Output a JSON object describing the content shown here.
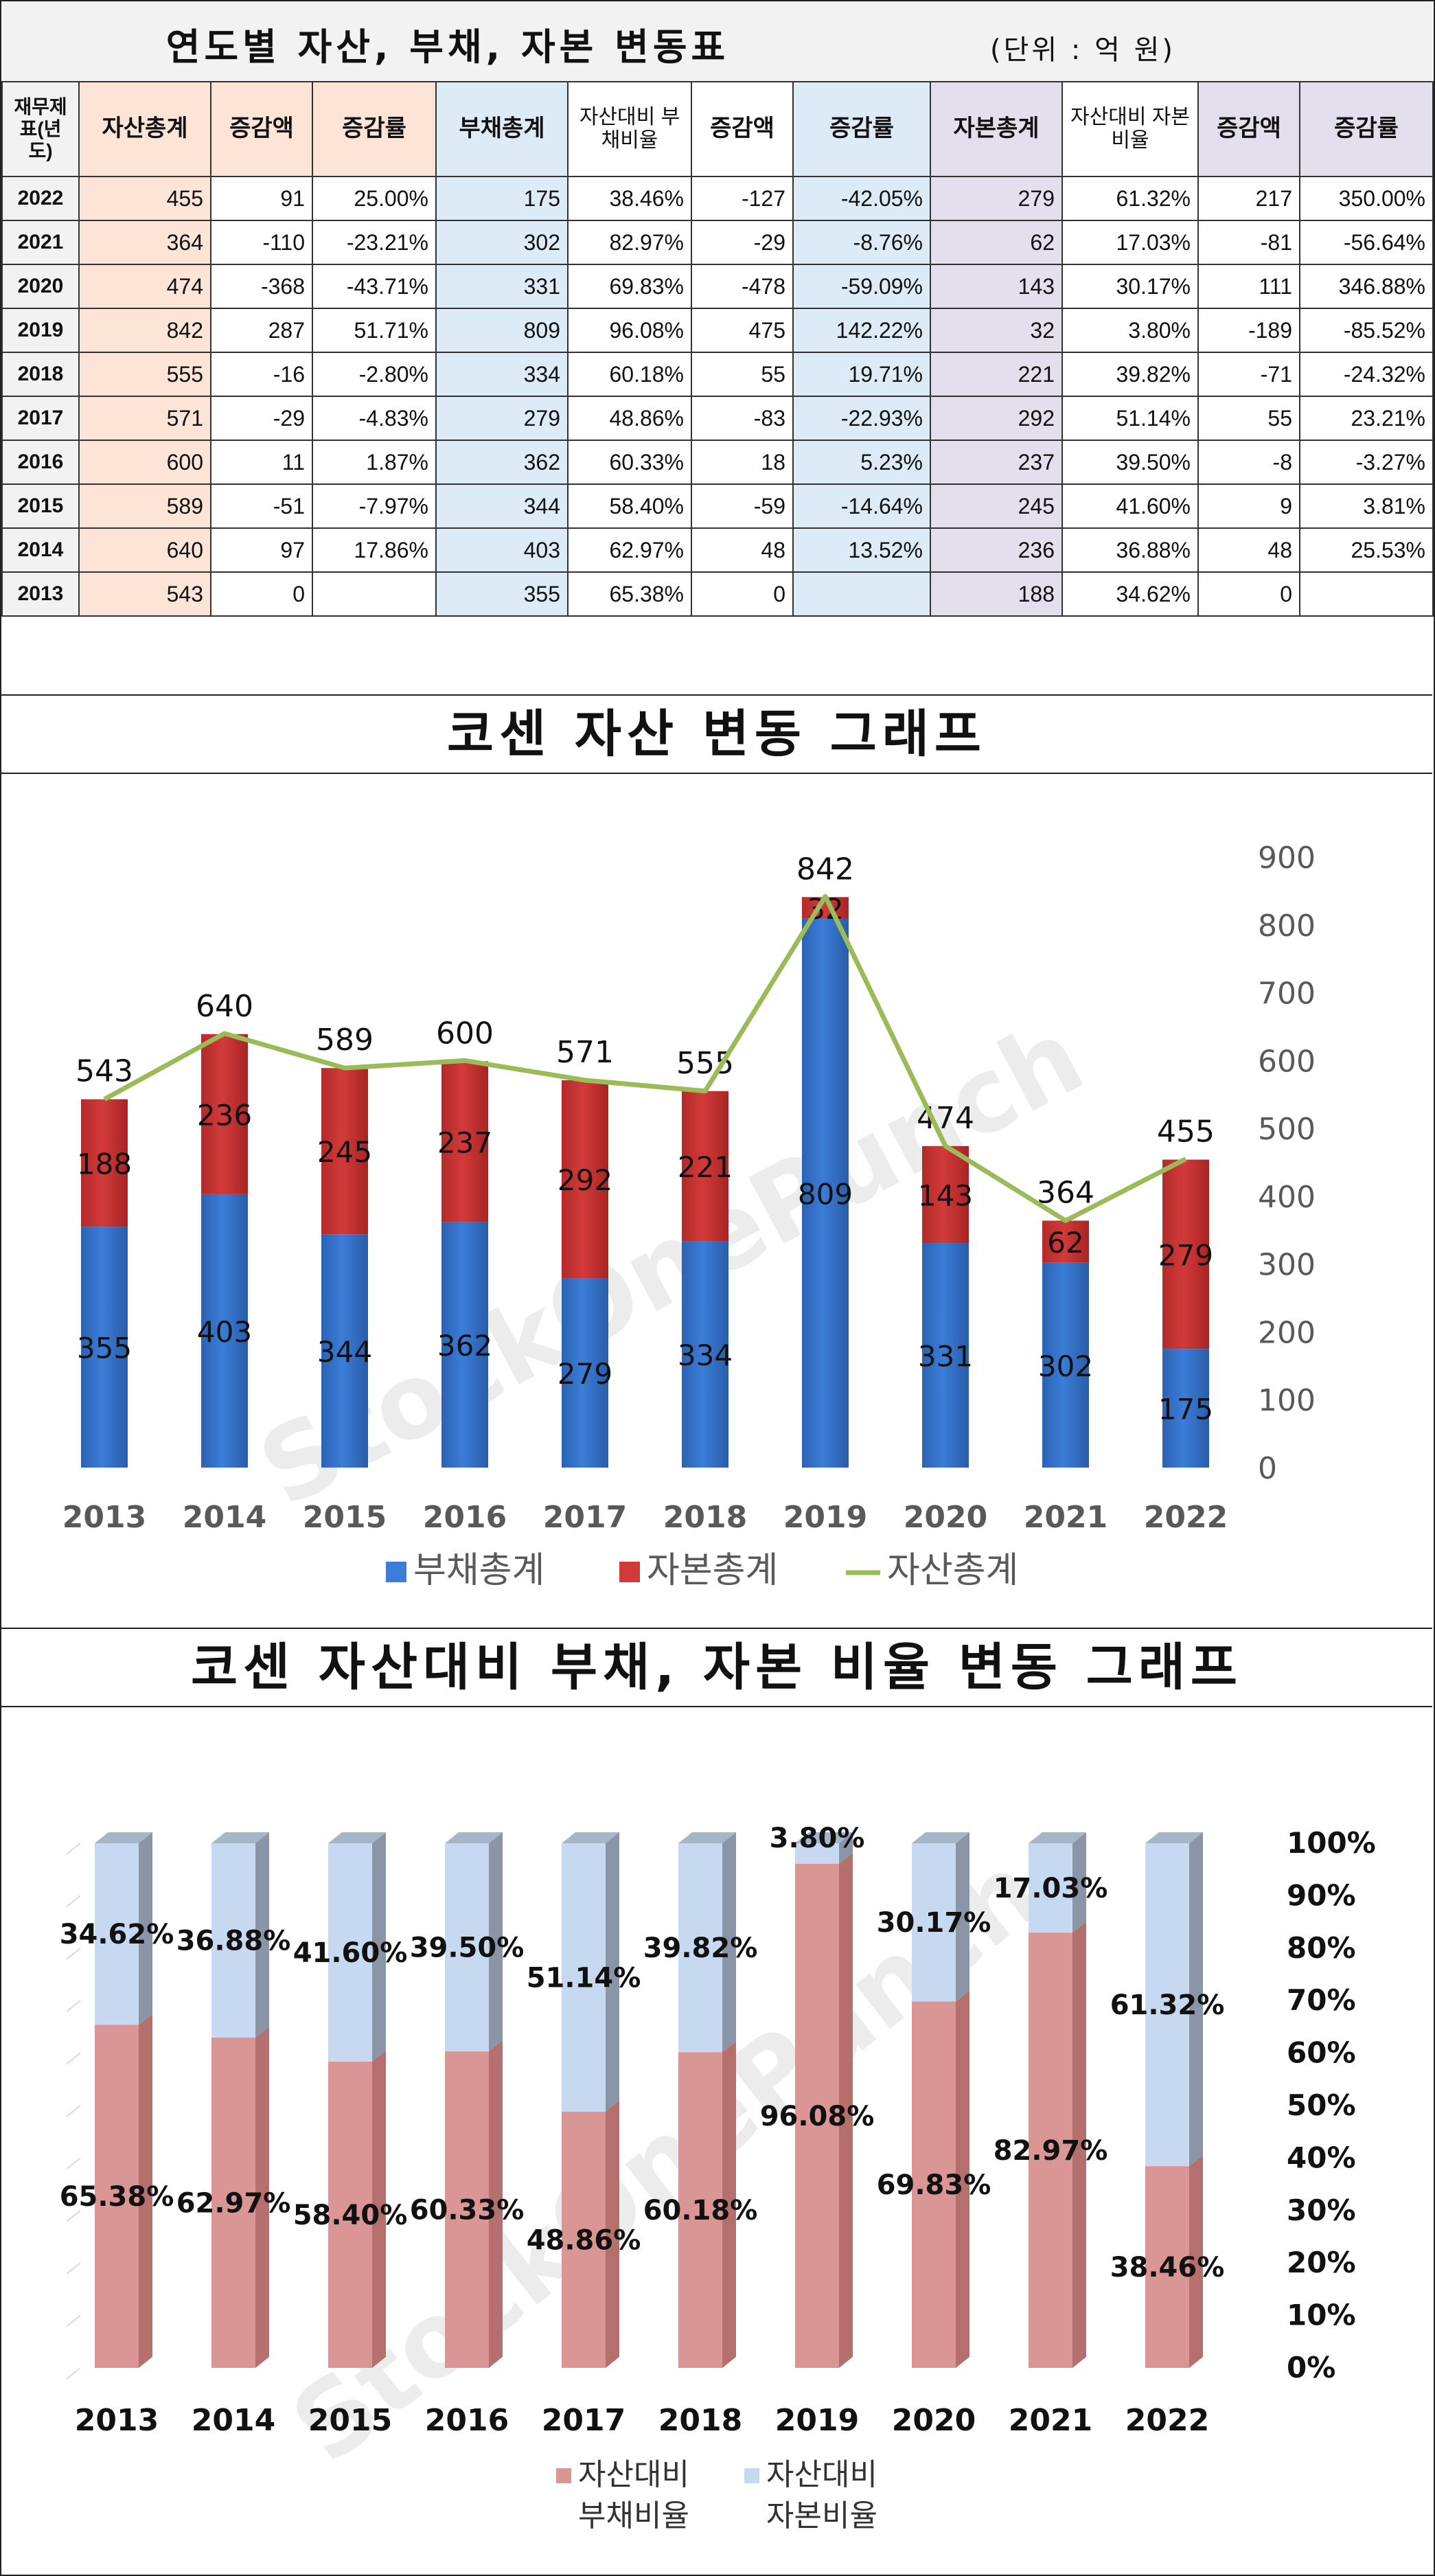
{
  "table": {
    "title": "연도별 자산, 부채, 자본 변동표",
    "unit": "(단위 : 억 원)",
    "headers": {
      "year": "재무제표(년도)",
      "assets_total": "자산총계",
      "assets_change": "증감액",
      "assets_rate": "증감률",
      "debt_total": "부채총계",
      "debt_ratio": "자산대비 부채비율",
      "debt_change": "증감액",
      "debt_rate": "증감률",
      "equity_total": "자본총계",
      "equity_ratio": "자산대비 자본비율",
      "equity_change": "증감액",
      "equity_rate": "증감률"
    },
    "rows": [
      {
        "year": "2022",
        "assets": "455",
        "a_chg": "91",
        "a_rate": "25.00%",
        "debt": "175",
        "d_ratio": "38.46%",
        "d_chg": "-127",
        "d_rate": "-42.05%",
        "equity": "279",
        "e_ratio": "61.32%",
        "e_chg": "217",
        "e_rate": "350.00%"
      },
      {
        "year": "2021",
        "assets": "364",
        "a_chg": "-110",
        "a_rate": "-23.21%",
        "debt": "302",
        "d_ratio": "82.97%",
        "d_chg": "-29",
        "d_rate": "-8.76%",
        "equity": "62",
        "e_ratio": "17.03%",
        "e_chg": "-81",
        "e_rate": "-56.64%"
      },
      {
        "year": "2020",
        "assets": "474",
        "a_chg": "-368",
        "a_rate": "-43.71%",
        "debt": "331",
        "d_ratio": "69.83%",
        "d_chg": "-478",
        "d_rate": "-59.09%",
        "equity": "143",
        "e_ratio": "30.17%",
        "e_chg": "111",
        "e_rate": "346.88%"
      },
      {
        "year": "2019",
        "assets": "842",
        "a_chg": "287",
        "a_rate": "51.71%",
        "debt": "809",
        "d_ratio": "96.08%",
        "d_chg": "475",
        "d_rate": "142.22%",
        "equity": "32",
        "e_ratio": "3.80%",
        "e_chg": "-189",
        "e_rate": "-85.52%"
      },
      {
        "year": "2018",
        "assets": "555",
        "a_chg": "-16",
        "a_rate": "-2.80%",
        "debt": "334",
        "d_ratio": "60.18%",
        "d_chg": "55",
        "d_rate": "19.71%",
        "equity": "221",
        "e_ratio": "39.82%",
        "e_chg": "-71",
        "e_rate": "-24.32%"
      },
      {
        "year": "2017",
        "assets": "571",
        "a_chg": "-29",
        "a_rate": "-4.83%",
        "debt": "279",
        "d_ratio": "48.86%",
        "d_chg": "-83",
        "d_rate": "-22.93%",
        "equity": "292",
        "e_ratio": "51.14%",
        "e_chg": "55",
        "e_rate": "23.21%"
      },
      {
        "year": "2016",
        "assets": "600",
        "a_chg": "11",
        "a_rate": "1.87%",
        "debt": "362",
        "d_ratio": "60.33%",
        "d_chg": "18",
        "d_rate": "5.23%",
        "equity": "237",
        "e_ratio": "39.50%",
        "e_chg": "-8",
        "e_rate": "-3.27%"
      },
      {
        "year": "2015",
        "assets": "589",
        "a_chg": "-51",
        "a_rate": "-7.97%",
        "debt": "344",
        "d_ratio": "58.40%",
        "d_chg": "-59",
        "d_rate": "-14.64%",
        "equity": "245",
        "e_ratio": "41.60%",
        "e_chg": "9",
        "e_rate": "3.81%"
      },
      {
        "year": "2014",
        "assets": "640",
        "a_chg": "97",
        "a_rate": "17.86%",
        "debt": "403",
        "d_ratio": "62.97%",
        "d_chg": "48",
        "d_rate": "13.52%",
        "equity": "236",
        "e_ratio": "36.88%",
        "e_chg": "48",
        "e_rate": "25.53%"
      },
      {
        "year": "2013",
        "assets": "543",
        "a_chg": "0",
        "a_rate": "",
        "debt": "355",
        "d_ratio": "65.38%",
        "d_chg": "0",
        "d_rate": "",
        "equity": "188",
        "e_ratio": "34.62%",
        "e_chg": "0",
        "e_rate": ""
      }
    ]
  },
  "colors": {
    "debt_bar": "#3b7dd8",
    "equity_bar": "#d23a3a",
    "assets_line": "#9bbb59",
    "ratio_debt": "#d99694",
    "ratio_equity": "#c6d9f1",
    "negative_text": "#c00000"
  },
  "watermark": "StockOnePunch",
  "chart_data": [
    {
      "type": "bar",
      "stacked": true,
      "title": "코센 자산 변동 그래프",
      "categories": [
        "2013",
        "2014",
        "2015",
        "2016",
        "2017",
        "2018",
        "2019",
        "2020",
        "2021",
        "2022"
      ],
      "series": [
        {
          "name": "부채총계",
          "kind": "bar",
          "values": [
            355,
            403,
            344,
            362,
            279,
            334,
            809,
            331,
            302,
            175
          ]
        },
        {
          "name": "자본총계",
          "kind": "bar",
          "values": [
            188,
            236,
            245,
            237,
            292,
            221,
            32,
            143,
            62,
            279
          ]
        },
        {
          "name": "자산총계",
          "kind": "line",
          "values": [
            543,
            640,
            589,
            600,
            571,
            555,
            842,
            474,
            364,
            455
          ]
        }
      ],
      "y_ticks": [
        "0",
        "100",
        "200",
        "300",
        "400",
        "500",
        "600",
        "700",
        "800",
        "900"
      ],
      "ylim": [
        0,
        900
      ],
      "y_axis_side": "right",
      "legend": "bottom",
      "grid": false
    },
    {
      "type": "bar",
      "stacked": true,
      "style": "3d",
      "title": "코센 자산대비 부채, 자본 비율 변동 그래프",
      "categories": [
        "2013",
        "2014",
        "2015",
        "2016",
        "2017",
        "2018",
        "2019",
        "2020",
        "2021",
        "2022"
      ],
      "series": [
        {
          "name": "자산대비 부채비율",
          "values": [
            65.38,
            62.97,
            58.4,
            60.33,
            48.86,
            60.18,
            96.08,
            69.83,
            82.97,
            38.46
          ],
          "labels": [
            "65.38%",
            "62.97%",
            "58.40%",
            "60.33%",
            "48.86%",
            "60.18%",
            "96.08%",
            "69.83%",
            "82.97%",
            "38.46%"
          ]
        },
        {
          "name": "자산대비 자본비율",
          "values": [
            34.62,
            36.88,
            41.6,
            39.5,
            51.14,
            39.82,
            3.8,
            30.17,
            17.03,
            61.32
          ],
          "labels": [
            "34.62%",
            "36.88%",
            "41.60%",
            "39.50%",
            "51.14%",
            "39.82%",
            "3.80%",
            "30.17%",
            "17.03%",
            "61.32%"
          ]
        }
      ],
      "y_ticks": [
        "0%",
        "10%",
        "20%",
        "30%",
        "40%",
        "50%",
        "60%",
        "70%",
        "80%",
        "90%",
        "100%"
      ],
      "ylim": [
        0,
        100
      ],
      "y_axis_side": "right",
      "legend": "bottom",
      "grid": false
    }
  ]
}
